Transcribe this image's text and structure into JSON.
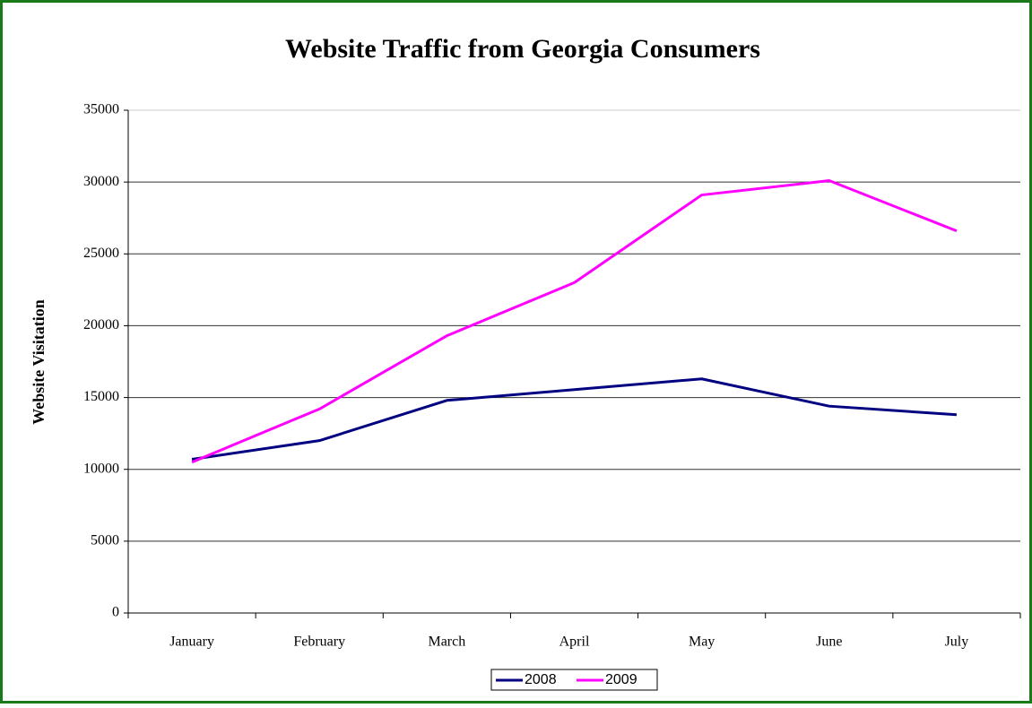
{
  "chart_data": {
    "type": "line",
    "title": "Website Traffic from Georgia Consumers",
    "y_label": "Website Visitation",
    "categories": [
      "January",
      "February",
      "March",
      "April",
      "May",
      "June",
      "July"
    ],
    "series": [
      {
        "name": "2008",
        "color": "#000080",
        "values": [
          10700,
          12000,
          14800,
          15550,
          16300,
          14400,
          13800
        ]
      },
      {
        "name": "2009",
        "color": "#ff00ff",
        "values": [
          10500,
          14200,
          19300,
          23000,
          29100,
          30100,
          26600
        ]
      }
    ],
    "ylim": [
      0,
      35000
    ],
    "yticks": [
      0,
      5000,
      10000,
      15000,
      20000,
      25000,
      30000,
      35000
    ],
    "grid": true,
    "legend": "bottom"
  }
}
